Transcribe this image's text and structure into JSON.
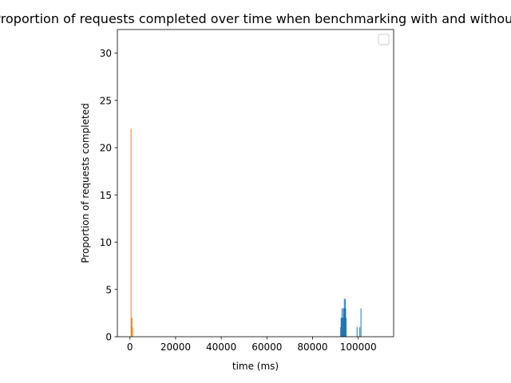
{
  "chart_data": {
    "type": "bar",
    "title": "Proportion of requests completed over time when benchmarking with and without",
    "xlabel": "time (ms)",
    "ylabel": "Proportion of requests completed",
    "xlim": [
      -5500,
      115500
    ],
    "ylim": [
      0,
      32.5
    ],
    "xticks": [
      0,
      20000,
      40000,
      60000,
      80000,
      100000
    ],
    "yticks": [
      0,
      5,
      10,
      15,
      20,
      25,
      30
    ],
    "bar_width": 150,
    "grid": false,
    "legend": {
      "placement": "top-right",
      "entries": []
    },
    "colors": {
      "series1": "#1f77b4",
      "series2": "#ff7f0e"
    },
    "series": [
      {
        "color": "#1f77b4",
        "x": [
          92300,
          92500,
          92700,
          92900,
          93100,
          93300,
          93500,
          93700,
          93900,
          94100,
          94300,
          94500,
          94700,
          99500,
          100700,
          101200
        ],
        "values": [
          1,
          2,
          2,
          3,
          2,
          2,
          3,
          3,
          4,
          3,
          4,
          3,
          2,
          1,
          1,
          3
        ]
      },
      {
        "color": "#ff7f0e",
        "x": [
          500,
          700,
          900,
          1100
        ],
        "values": [
          22,
          2,
          2,
          1
        ]
      }
    ]
  }
}
